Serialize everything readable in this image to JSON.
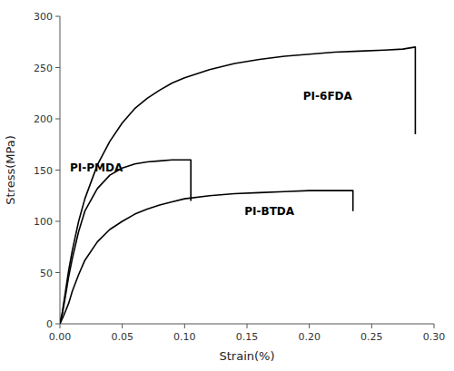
{
  "chart_data": {
    "type": "line",
    "title": "",
    "xlabel": "Strain(%)",
    "ylabel": "Stress(MPa)",
    "xlim": [
      0,
      0.3
    ],
    "ylim": [
      0,
      300
    ],
    "xticks": [
      {
        "value": 0.0,
        "label": "0.00"
      },
      0.05,
      {
        "value": 0.1,
        "label": "0.10"
      },
      0.15,
      {
        "value": 0.2,
        "label": "0.20"
      },
      0.25,
      {
        "value": 0.3,
        "label": "0.30"
      }
    ],
    "yticks": [
      0,
      50,
      100,
      150,
      200,
      250,
      300
    ],
    "grid": false,
    "color": "#000000",
    "series": [
      {
        "x": [
          0.0,
          0.002,
          0.004,
          0.007,
          0.01,
          0.015,
          0.02,
          0.03,
          0.04,
          0.05,
          0.06,
          0.07,
          0.08,
          0.09,
          0.1,
          0.12,
          0.14,
          0.16,
          0.18,
          0.2,
          0.22,
          0.24,
          0.26,
          0.275,
          0.285,
          0.285
        ],
        "values": [
          0.0,
          12,
          28,
          52,
          72,
          100,
          122,
          155,
          178,
          196,
          210,
          220,
          228,
          235,
          240,
          248,
          254,
          258,
          261,
          263,
          265,
          266,
          267,
          268,
          270,
          185
        ]
      },
      {
        "x": [
          0.0,
          0.002,
          0.004,
          0.007,
          0.01,
          0.015,
          0.02,
          0.03,
          0.04,
          0.05,
          0.06,
          0.07,
          0.08,
          0.09,
          0.1,
          0.105,
          0.105
        ],
        "values": [
          0.0,
          10,
          24,
          46,
          64,
          90,
          110,
          132,
          145,
          152,
          156,
          158,
          159,
          160,
          160,
          160,
          120
        ]
      },
      {
        "x": [
          0.0,
          0.003,
          0.007,
          0.01,
          0.015,
          0.02,
          0.03,
          0.04,
          0.05,
          0.06,
          0.07,
          0.08,
          0.09,
          0.1,
          0.12,
          0.14,
          0.16,
          0.18,
          0.2,
          0.22,
          0.235,
          0.235
        ],
        "values": [
          0.0,
          8,
          20,
          32,
          48,
          62,
          80,
          92,
          100,
          107,
          112,
          116,
          119,
          122,
          125,
          127,
          128,
          129,
          130,
          130,
          130,
          110
        ]
      }
    ],
    "annotations": [
      {
        "text": "PI-6FDA",
        "x": 0.195,
        "y": 222
      },
      {
        "text": "PI-PMDA",
        "x": 0.008,
        "y": 152
      },
      {
        "text": "PI-BTDA",
        "x": 0.148,
        "y": 110
      }
    ]
  }
}
